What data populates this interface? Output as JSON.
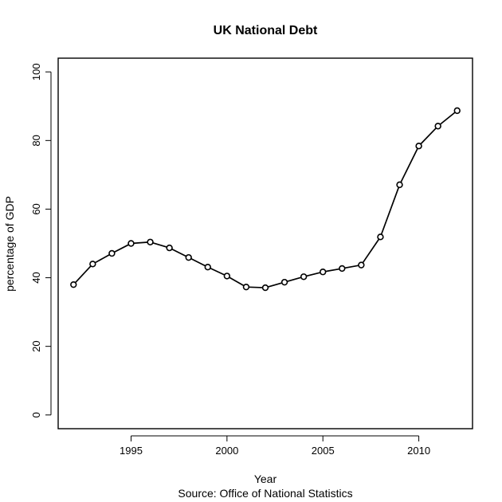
{
  "chart_data": {
    "type": "line",
    "title": "UK National Debt",
    "xlabel": "Year",
    "ylabel": "percentage of GDP",
    "source": "Source: Office of National Statistics",
    "xlim": [
      1991.2,
      2012.8
    ],
    "ylim": [
      -4,
      104
    ],
    "x_ticks": [
      1995,
      2000,
      2005,
      2010
    ],
    "y_ticks": [
      0,
      20,
      40,
      60,
      80,
      100
    ],
    "grid": false,
    "legend": "none",
    "markers": "open-circle",
    "line_color": "#000000",
    "series": [
      {
        "x": [
          1992,
          1993,
          1994,
          1995,
          1996,
          1997,
          1998,
          1999,
          2000,
          2001,
          2002,
          2003,
          2004,
          2005,
          2006,
          2007,
          2008,
          2009,
          2010,
          2011,
          2012
        ],
        "values": [
          38.0,
          44.0,
          47.1,
          50.0,
          50.4,
          48.7,
          45.9,
          43.1,
          40.5,
          37.3,
          37.1,
          38.7,
          40.3,
          41.7,
          42.7,
          43.7,
          51.9,
          67.1,
          78.4,
          84.2,
          88.7
        ]
      }
    ]
  }
}
